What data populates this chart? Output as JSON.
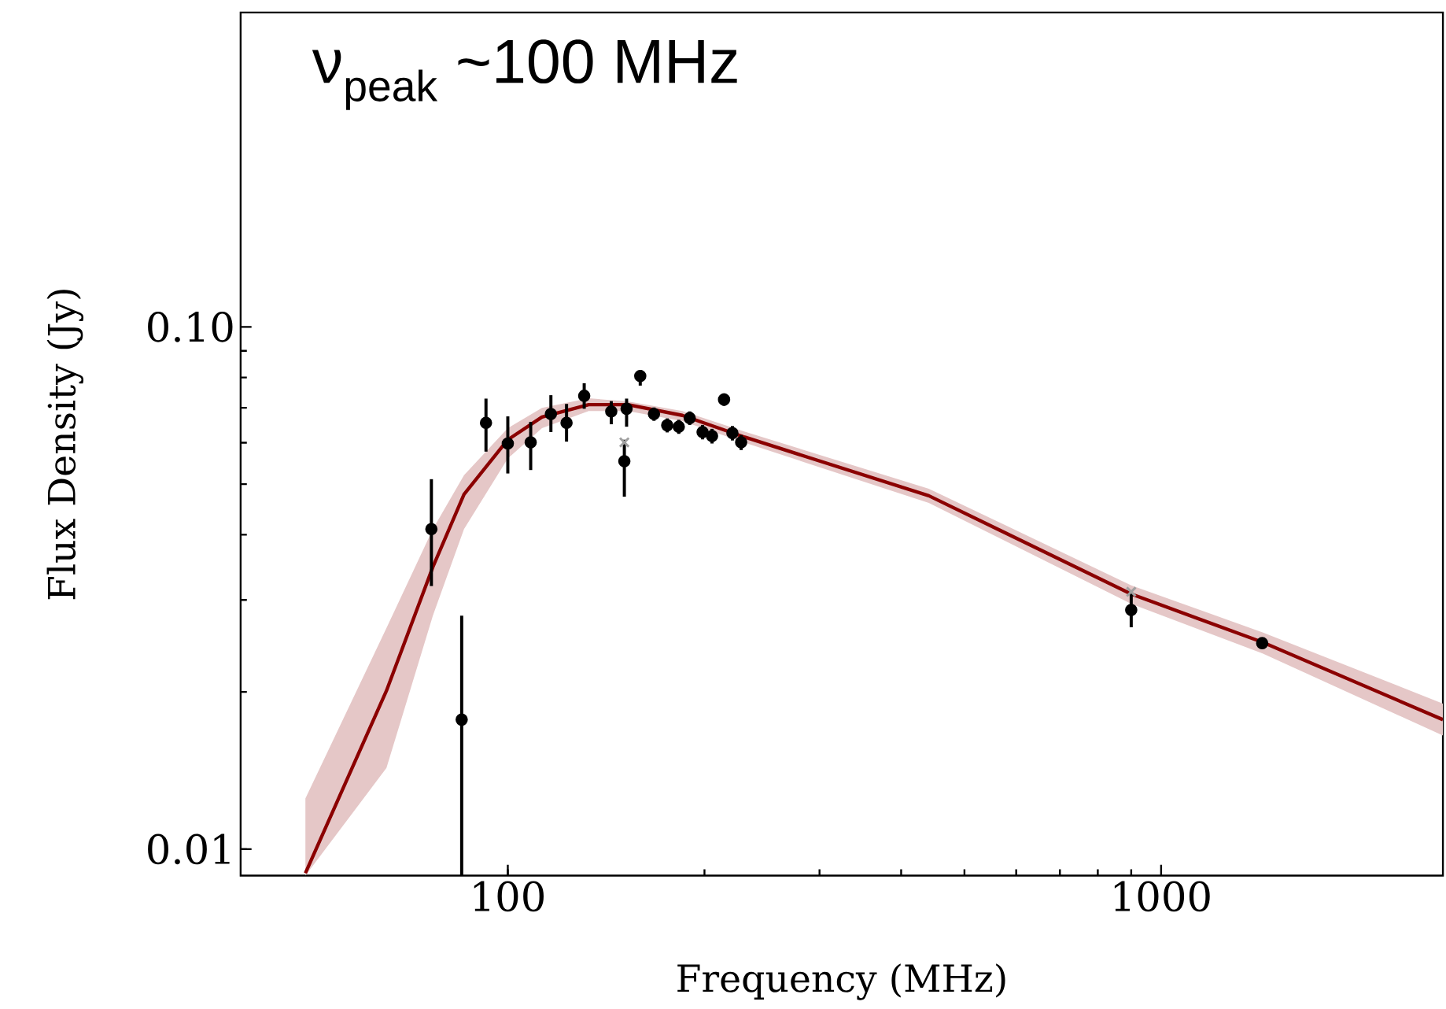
{
  "chart_data": {
    "type": "scatter",
    "xlabel": "Frequency (MHz)",
    "ylabel": "Flux Density (Jy)",
    "log": "xy",
    "xlim": [
      39,
      2700
    ],
    "ylim": [
      0.0089,
      0.4
    ],
    "xticks": [
      100,
      1000
    ],
    "yticks": [
      0.01,
      {
        "value": 0.1,
        "label": "0.10"
      }
    ],
    "annotations": [
      "ν$_{peak}$ ~100 MHz"
    ],
    "series": [
      {
        "type": "line",
        "color": "#8b0000",
        "marker": "none",
        "x": [
          49,
          65.2,
          76.8,
          85.7,
          100,
          112.8,
          133,
          152.6,
          185,
          230.6,
          441,
          900,
          1430,
          2700
        ],
        "values": [
          0.009,
          0.0201,
          0.0347,
          0.0478,
          0.0608,
          0.0672,
          0.071,
          0.071,
          0.0677,
          0.0615,
          0.0475,
          0.0308,
          0.0249,
          0.0177
        ],
        "lower": [
          0.0089,
          0.0143,
          0.028,
          0.041,
          0.056,
          0.064,
          0.069,
          0.069,
          0.066,
          0.06,
          0.046,
          0.0295,
          0.0237,
          0.0165
        ],
        "upper": [
          0.0125,
          0.0265,
          0.041,
          0.052,
          0.064,
          0.07,
          0.073,
          0.072,
          0.069,
          0.063,
          0.049,
          0.032,
          0.026,
          0.019
        ]
      },
      {
        "color": "#a0a0a0",
        "marker": "cross",
        "x": [
          150.8,
          900
        ],
        "values": [
          0.0601,
          0.0311
        ]
      },
      {
        "color": "#000000",
        "marker": "circle",
        "x": [
          76.4,
          85,
          92.6,
          100,
          108.4,
          116.4,
          123,
          130.9,
          144,
          150.8,
          152,
          159.5,
          167.4,
          175.4,
          182.7,
          189.9,
          198.7,
          205.4,
          214.3,
          220.7,
          227.6,
          900,
          1428
        ],
        "values": [
          0.041,
          0.0177,
          0.0655,
          0.0598,
          0.0601,
          0.0681,
          0.0655,
          0.0738,
          0.0689,
          0.0553,
          0.0697,
          0.0805,
          0.0681,
          0.0648,
          0.0644,
          0.0669,
          0.0629,
          0.0618,
          0.0726,
          0.0626,
          0.0601,
          0.0287,
          0.0248
        ],
        "errors": [
          [
            0.0319,
            0.0511
          ],
          [
            0.0089,
            0.028
          ],
          [
            0.0577,
            0.0729
          ],
          [
            0.0524,
            0.0674
          ],
          [
            0.0532,
            0.0658
          ],
          [
            0.0629,
            0.074
          ],
          [
            0.0603,
            0.0712
          ],
          [
            0.0697,
            0.078
          ],
          [
            0.0651,
            0.0721
          ],
          [
            0.0473,
            0.0608
          ],
          [
            0.0644,
            0.0729
          ],
          [
            0.0772,
            0.0827
          ],
          0.002,
          0.002,
          0.002,
          0.002,
          0.002,
          0.002,
          0.002,
          0.002,
          0.002,
          [
            0.0266,
            0.0311
          ],
          0.0006
        ]
      }
    ]
  }
}
